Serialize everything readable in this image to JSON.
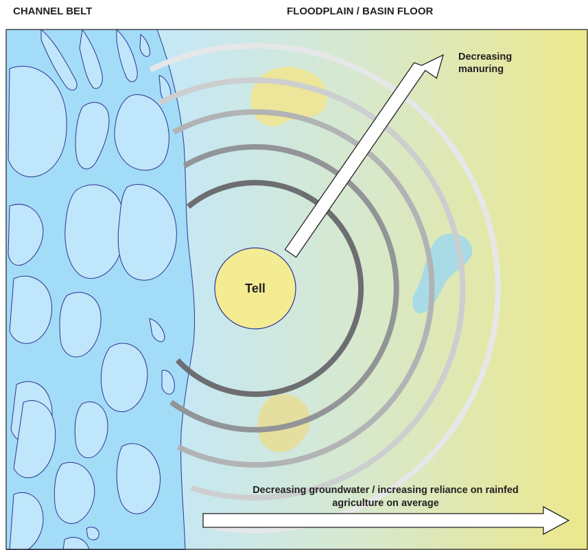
{
  "headers": {
    "left": "CHANNEL BELT",
    "right": "FLOODPLAIN / BASIN FLOOR"
  },
  "center": {
    "label": "Tell"
  },
  "arrows": {
    "manuring": {
      "line1": "Decreasing",
      "line2": "manuring"
    },
    "groundwater": {
      "line1": "Decreasing groundwater / increasing reliance on rainfed",
      "line2": "agriculture on average"
    }
  },
  "colors": {
    "channel": "#a3dcf7",
    "floodplain_start": "#c6e8f5",
    "floodplain_end": "#ece88c",
    "tell": "#f3ec93",
    "ring_dark": "#6d6e71",
    "ring_light": "#e6e7e8"
  }
}
